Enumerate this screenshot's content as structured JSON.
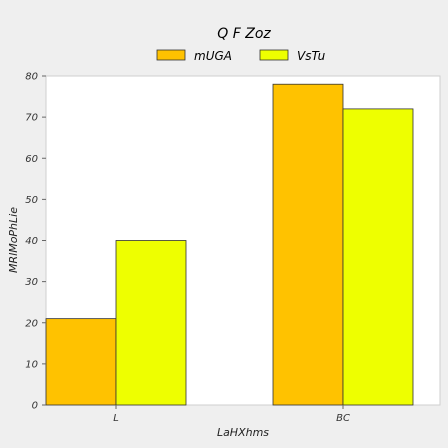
{
  "chart_data": {
    "type": "bar",
    "title": "Q F Zoz",
    "xlabel": "LaHXhms",
    "ylabel": "MRlMoPhLie",
    "categories": [
      "L",
      "BC"
    ],
    "series": [
      {
        "name": "mUGA",
        "values": [
          21,
          78
        ],
        "color": "#ffc200"
      },
      {
        "name": "VsTu",
        "values": [
          40,
          72
        ],
        "color": "#eeff00"
      }
    ],
    "ylim": [
      0,
      80
    ],
    "yticks": [
      0,
      10,
      20,
      30,
      40,
      50,
      60,
      70,
      80
    ],
    "grid": false,
    "legend_position": "top"
  }
}
